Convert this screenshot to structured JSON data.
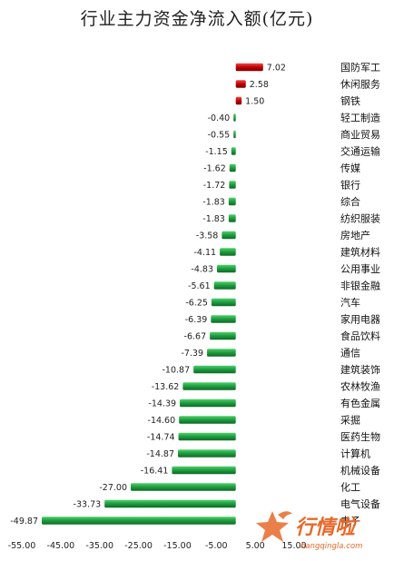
{
  "chart_data": {
    "type": "bar",
    "orientation": "horizontal",
    "title": "行业主力资金净流入额(亿元)",
    "xlim": [
      -55,
      15
    ],
    "xticks": [
      "-55.00",
      "-45.00",
      "-35.00",
      "-25.00",
      "-15.00",
      "-5.00",
      "5.00",
      "15.00"
    ],
    "xtick_values": [
      -55,
      -45,
      -35,
      -25,
      -15,
      -5,
      5,
      15
    ],
    "grid": false,
    "legend": "none",
    "colors": {
      "positive": "#c00000",
      "negative": "#1e9b3e"
    },
    "categories": [
      "国防军工",
      "休闲服务",
      "钢铁",
      "轻工制造",
      "商业贸易",
      "交通运输",
      "传媒",
      "银行",
      "综合",
      "纺织服装",
      "房地产",
      "建筑材料",
      "公用事业",
      "非银金融",
      "汽车",
      "家用电器",
      "食品饮料",
      "通信",
      "建筑装饰",
      "农林牧渔",
      "有色金属",
      "采掘",
      "医药生物",
      "计算机",
      "机械设备",
      "化工",
      "电气设备",
      "电子"
    ],
    "values": [
      7.02,
      2.58,
      1.5,
      -0.4,
      -0.55,
      -1.15,
      -1.62,
      -1.72,
      -1.83,
      -1.83,
      -3.58,
      -4.11,
      -4.83,
      -5.61,
      -6.25,
      -6.39,
      -6.67,
      -7.39,
      -10.87,
      -13.62,
      -14.39,
      -14.6,
      -14.74,
      -14.87,
      -16.41,
      -27.0,
      -33.73,
      -49.87
    ],
    "labels": [
      "7.02",
      "2.58",
      "1.50",
      "-0.40",
      "-0.55",
      "-1.15",
      "-1.62",
      "-1.72",
      "-1.83",
      "-1.83",
      "-3.58",
      "-4.11",
      "-4.83",
      "-5.61",
      "-6.25",
      "-6.39",
      "-6.67",
      "-7.39",
      "-10.87",
      "-13.62",
      "-14.39",
      "-14.60",
      "-14.74",
      "-14.87",
      "-16.41",
      "-27.00",
      "-33.73",
      "-49.87"
    ]
  },
  "watermark": {
    "text": "行情啦",
    "url": "hangqingla.com",
    "color": "#e8682a",
    "icon": "star-flame-icon"
  }
}
